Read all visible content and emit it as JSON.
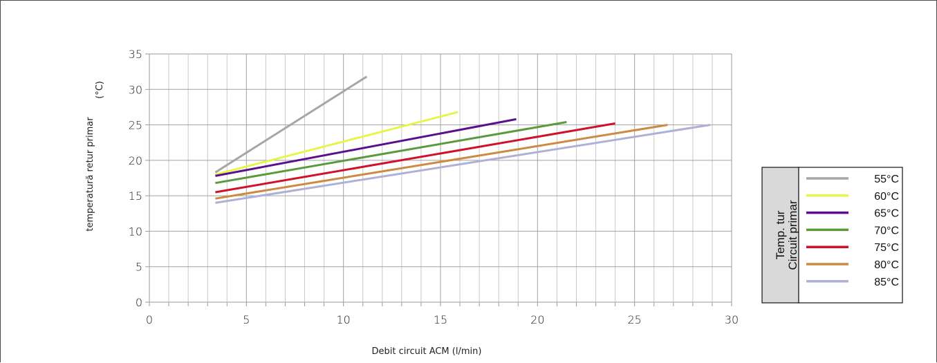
{
  "chart_data": {
    "type": "line",
    "xlabel": "Debit circuit ACM  (l/min)",
    "ylabel": "temperatură  retur primar",
    "yunit": "(°C)",
    "xlim": [
      0,
      30
    ],
    "ylim": [
      0,
      35
    ],
    "xticks": [
      "0",
      "5",
      "10",
      "15",
      "20",
      "25",
      "30"
    ],
    "yticks": [
      "0",
      "5",
      "10",
      "15",
      "20",
      "25",
      "30",
      "35"
    ],
    "grid": true,
    "legend": {
      "title_line1": "Temp. tur",
      "title_line2": "Circuit primar",
      "placement": "right"
    },
    "series": [
      {
        "name": "55°C",
        "color": "#a6a6a6",
        "points": [
          [
            3.4,
            18.3
          ],
          [
            11.2,
            31.8
          ]
        ]
      },
      {
        "name": "60°C",
        "color": "#e6f54a",
        "points": [
          [
            3.4,
            18.0
          ],
          [
            15.9,
            26.8
          ]
        ]
      },
      {
        "name": "65°C",
        "color": "#5b0f8c",
        "points": [
          [
            3.4,
            17.8
          ],
          [
            18.9,
            25.8
          ]
        ]
      },
      {
        "name": "70°C",
        "color": "#5b9a3c",
        "points": [
          [
            3.4,
            16.8
          ],
          [
            21.5,
            25.4
          ]
        ]
      },
      {
        "name": "75°C",
        "color": "#d0112b",
        "points": [
          [
            3.4,
            15.5
          ],
          [
            24.0,
            25.2
          ]
        ]
      },
      {
        "name": "80°C",
        "color": "#cc8a42",
        "points": [
          [
            3.4,
            14.6
          ],
          [
            26.7,
            25.0
          ]
        ]
      },
      {
        "name": "85°C",
        "color": "#aeb0d6",
        "points": [
          [
            3.4,
            14.0
          ],
          [
            28.9,
            25.0
          ]
        ]
      }
    ]
  }
}
